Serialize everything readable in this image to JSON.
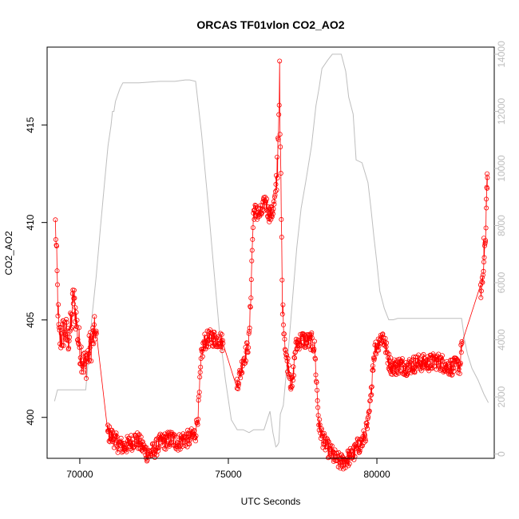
{
  "chart_data": {
    "type": "scatter",
    "title": "ORCAS TF01vlon CO2_AO2",
    "xlabel": "UTC Seconds",
    "ylabel": "CO2_AO2",
    "xlim": [
      68900,
      83950
    ],
    "ylim": [
      397.9,
      419.0
    ],
    "y2lim": [
      -150,
      14250
    ],
    "x_ticks": [
      70000,
      75000,
      80000
    ],
    "y_ticks": [
      400,
      405,
      410,
      415
    ],
    "y2_ticks": [
      0,
      2000,
      4000,
      6000,
      8000,
      10000,
      12000,
      14000
    ],
    "colors": {
      "co2": "#ff0000",
      "altitude": "#bebebe",
      "axis": "#000000",
      "right_axis": "#bebebe"
    },
    "altitude_series": {
      "x": [
        69150,
        69250,
        69500,
        69800,
        70050,
        70200,
        70400,
        70550,
        70700,
        70850,
        70950,
        71050,
        71100,
        71150,
        71200,
        71350,
        71450,
        72000,
        72700,
        73200,
        73550,
        73700,
        73900,
        74100,
        74300,
        74500,
        74700,
        74900,
        75100,
        75300,
        75500,
        75700,
        75850,
        76000,
        76200,
        76400,
        76500,
        76600,
        76650,
        76700,
        76750,
        76850,
        77000,
        77150,
        77300,
        77450,
        77600,
        77800,
        77950,
        78050,
        78150,
        78350,
        78500,
        78650,
        78700,
        78800,
        78950,
        79050,
        79200,
        79300,
        79500,
        79700,
        79800,
        79900,
        80000,
        80100,
        80250,
        80400,
        80550,
        80700,
        80850,
        81000,
        81100,
        81200,
        81400,
        82000,
        82500,
        82700,
        82850,
        82950,
        83050,
        83200,
        83400,
        83600,
        83750
      ],
      "y": [
        1850,
        2250,
        2250,
        2250,
        2250,
        2250,
        4700,
        6200,
        8000,
        9700,
        10800,
        11500,
        12000,
        12000,
        12350,
        12800,
        13000,
        13000,
        13050,
        13050,
        13100,
        13100,
        13050,
        11200,
        9000,
        6600,
        4300,
        2600,
        1200,
        850,
        850,
        750,
        850,
        850,
        850,
        1500,
        750,
        250,
        300,
        400,
        1400,
        1700,
        3400,
        5300,
        7200,
        8600,
        9500,
        10800,
        12200,
        12800,
        13500,
        13800,
        14000,
        14000,
        14000,
        14000,
        13400,
        12500,
        11900,
        10300,
        10200,
        9500,
        8600,
        7600,
        6700,
        5700,
        5100,
        4700,
        4700,
        4750,
        4750,
        4750,
        4750,
        4750,
        4750,
        4750,
        4750,
        4750,
        4750,
        4000,
        3500,
        3000,
        2600,
        2100,
        1800
      ]
    }
  }
}
